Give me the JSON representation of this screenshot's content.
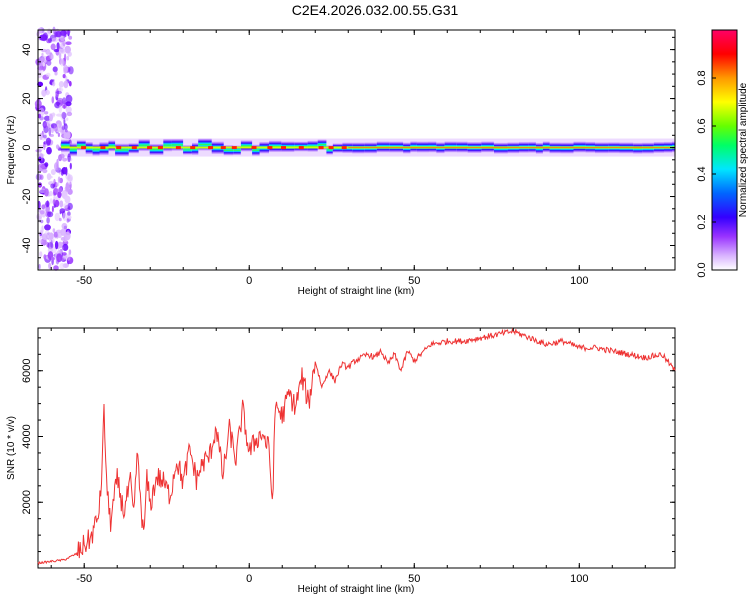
{
  "title": "C2E4.2026.032.00.55.G31",
  "chart_data": [
    {
      "type": "heatmap",
      "name": "spectrogram",
      "xlabel": "Height of straight line (km)",
      "ylabel": "Frequency (Hz)",
      "xlim": [
        -64,
        129
      ],
      "ylim": [
        -50,
        48
      ],
      "xticks": [
        -50,
        0,
        50,
        100
      ],
      "yticks": [
        -40,
        -20,
        0,
        20,
        40
      ],
      "colorbar": {
        "label": "Normalized spectral amplitude",
        "range": [
          0,
          1
        ],
        "ticks": [
          "0.0",
          "0.2",
          "0.4",
          "0.6",
          "0.8"
        ],
        "tick_values": [
          0.0,
          0.2,
          0.4,
          0.6,
          0.8
        ],
        "colors": [
          "#ffffff",
          "#d9b3ff",
          "#9933ff",
          "#3300ff",
          "#0066ff",
          "#00e6ff",
          "#00ff66",
          "#66ff00",
          "#ffff00",
          "#ff9900",
          "#ff0000",
          "#ff0066"
        ]
      },
      "noise_region_x": [
        -64,
        -54
      ],
      "band_center_freq_hz": 0
    },
    {
      "type": "line",
      "name": "snr",
      "xlabel": "Height of straight line (km)",
      "ylabel": "SNR (10 * v/v)",
      "xlim": [
        -64,
        129
      ],
      "ylim": [
        0,
        7300
      ],
      "xticks": [
        -50,
        0,
        50,
        100
      ],
      "yticks": [
        2000,
        4000,
        6000
      ],
      "color": "#ee3333",
      "series": [
        {
          "name": "SNR",
          "x": [
            -64,
            -60,
            -56,
            -52,
            -50,
            -48,
            -46,
            -45,
            -44,
            -43,
            -42,
            -40,
            -38,
            -36,
            -35,
            -34,
            -32,
            -31,
            -30,
            -28,
            -26,
            -24,
            -22,
            -20,
            -18,
            -16,
            -14,
            -12,
            -10,
            -8,
            -6,
            -4,
            -2,
            0,
            2,
            4,
            6,
            7,
            8,
            10,
            12,
            14,
            16,
            18,
            20,
            22,
            24,
            26,
            28,
            30,
            32,
            34,
            36,
            38,
            40,
            42,
            44,
            46,
            48,
            50,
            55,
            60,
            65,
            70,
            75,
            80,
            85,
            90,
            95,
            100,
            105,
            110,
            115,
            120,
            125,
            129
          ],
          "y": [
            150,
            200,
            250,
            450,
            700,
            900,
            1500,
            2200,
            4700,
            2200,
            1400,
            2700,
            1700,
            2600,
            1500,
            3500,
            900,
            2700,
            1900,
            2800,
            2600,
            2200,
            3300,
            2600,
            3600,
            2700,
            3200,
            3400,
            4300,
            2800,
            4200,
            3300,
            4800,
            3500,
            3900,
            4100,
            3600,
            2000,
            5000,
            4600,
            5300,
            4900,
            5800,
            5000,
            6300,
            5500,
            6000,
            5700,
            6200,
            6100,
            6300,
            6400,
            6500,
            6400,
            6600,
            6200,
            6500,
            6000,
            6600,
            6300,
            6800,
            6900,
            6900,
            7000,
            7100,
            7200,
            7000,
            6800,
            6900,
            6700,
            6700,
            6600,
            6500,
            6400,
            6500,
            6000
          ]
        }
      ]
    }
  ]
}
